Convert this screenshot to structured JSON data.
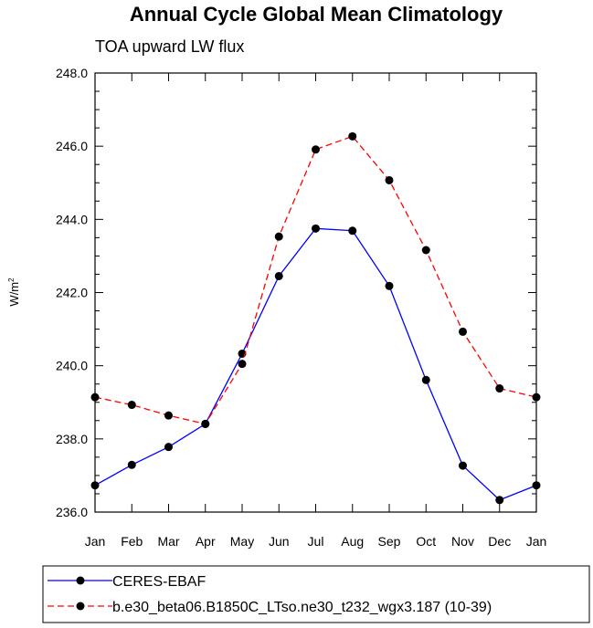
{
  "chart_data": {
    "type": "line",
    "title": "Annual Cycle Global Mean Climatology",
    "subtitle": "TOA upward LW flux",
    "ylabel": "W/m",
    "ylabel_superscript": "2",
    "categories": [
      "Jan",
      "Feb",
      "Mar",
      "Apr",
      "May",
      "Jun",
      "Jul",
      "Aug",
      "Sep",
      "Oct",
      "Nov",
      "Dec",
      "Jan"
    ],
    "ylim": [
      236.0,
      248.0
    ],
    "yticks": [
      "236.0",
      "238.0",
      "240.0",
      "242.0",
      "244.0",
      "246.0",
      "248.0"
    ],
    "grid": false,
    "legend_position": "bottom",
    "series": [
      {
        "name": "CERES-EBAF",
        "color": "#0000ff",
        "dash": "solid",
        "values": [
          236.73,
          237.29,
          237.78,
          238.41,
          240.33,
          242.45,
          243.75,
          243.69,
          242.18,
          239.61,
          237.27,
          236.33,
          236.73
        ]
      },
      {
        "name": "b.e30_beta06.B1850C_LTso.ne30_t232_wgx3.187 (10-39)",
        "color": "#ff0000",
        "dash": "dashed",
        "values": [
          239.14,
          238.93,
          238.64,
          238.41,
          240.05,
          243.53,
          245.91,
          246.27,
          245.07,
          243.16,
          240.93,
          239.38,
          239.14
        ]
      }
    ]
  }
}
